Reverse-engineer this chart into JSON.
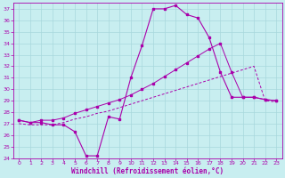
{
  "xlabel": "Windchill (Refroidissement éolien,°C)",
  "bg_color": "#c8eef0",
  "grid_color": "#a8d8dc",
  "line_color": "#aa00aa",
  "xlim": [
    -0.5,
    23.5
  ],
  "ylim": [
    24,
    37.5
  ],
  "xticks": [
    0,
    1,
    2,
    3,
    4,
    5,
    6,
    7,
    8,
    9,
    10,
    11,
    12,
    13,
    14,
    15,
    16,
    17,
    18,
    19,
    20,
    21,
    22,
    23
  ],
  "yticks": [
    24,
    25,
    26,
    27,
    28,
    29,
    30,
    31,
    32,
    33,
    34,
    35,
    36,
    37
  ],
  "line1_x": [
    0,
    1,
    2,
    3,
    4,
    5,
    6,
    7,
    8,
    9,
    10,
    11,
    12,
    13,
    14,
    15,
    16,
    17,
    18,
    19,
    20,
    21,
    22,
    23
  ],
  "line1_y": [
    27.3,
    27.1,
    27.1,
    26.9,
    26.9,
    26.3,
    24.2,
    24.2,
    27.6,
    27.4,
    31.0,
    33.8,
    37.0,
    37.0,
    37.3,
    36.5,
    36.2,
    34.5,
    31.5,
    29.3,
    29.3,
    29.3,
    29.1,
    29.0
  ],
  "line2_x": [
    0,
    1,
    2,
    3,
    4,
    5,
    6,
    7,
    8,
    9,
    10,
    11,
    12,
    13,
    14,
    15,
    16,
    17,
    18,
    19,
    20,
    21,
    22,
    23
  ],
  "line2_y": [
    27.3,
    27.1,
    27.3,
    27.3,
    27.5,
    27.9,
    28.2,
    28.5,
    28.8,
    29.1,
    29.5,
    30.0,
    30.5,
    31.1,
    31.7,
    32.3,
    32.9,
    33.5,
    34.0,
    31.5,
    29.3,
    29.3,
    29.1,
    29.0
  ],
  "line3_x": [
    0,
    1,
    2,
    3,
    4,
    5,
    6,
    7,
    8,
    9,
    10,
    11,
    12,
    13,
    14,
    15,
    16,
    17,
    18,
    19,
    20,
    21,
    22,
    23
  ],
  "line3_y": [
    27.0,
    26.9,
    26.9,
    26.9,
    27.1,
    27.4,
    27.6,
    27.9,
    28.1,
    28.4,
    28.7,
    29.0,
    29.3,
    29.6,
    29.9,
    30.2,
    30.5,
    30.8,
    31.1,
    31.4,
    31.7,
    32.0,
    29.0,
    28.9
  ]
}
